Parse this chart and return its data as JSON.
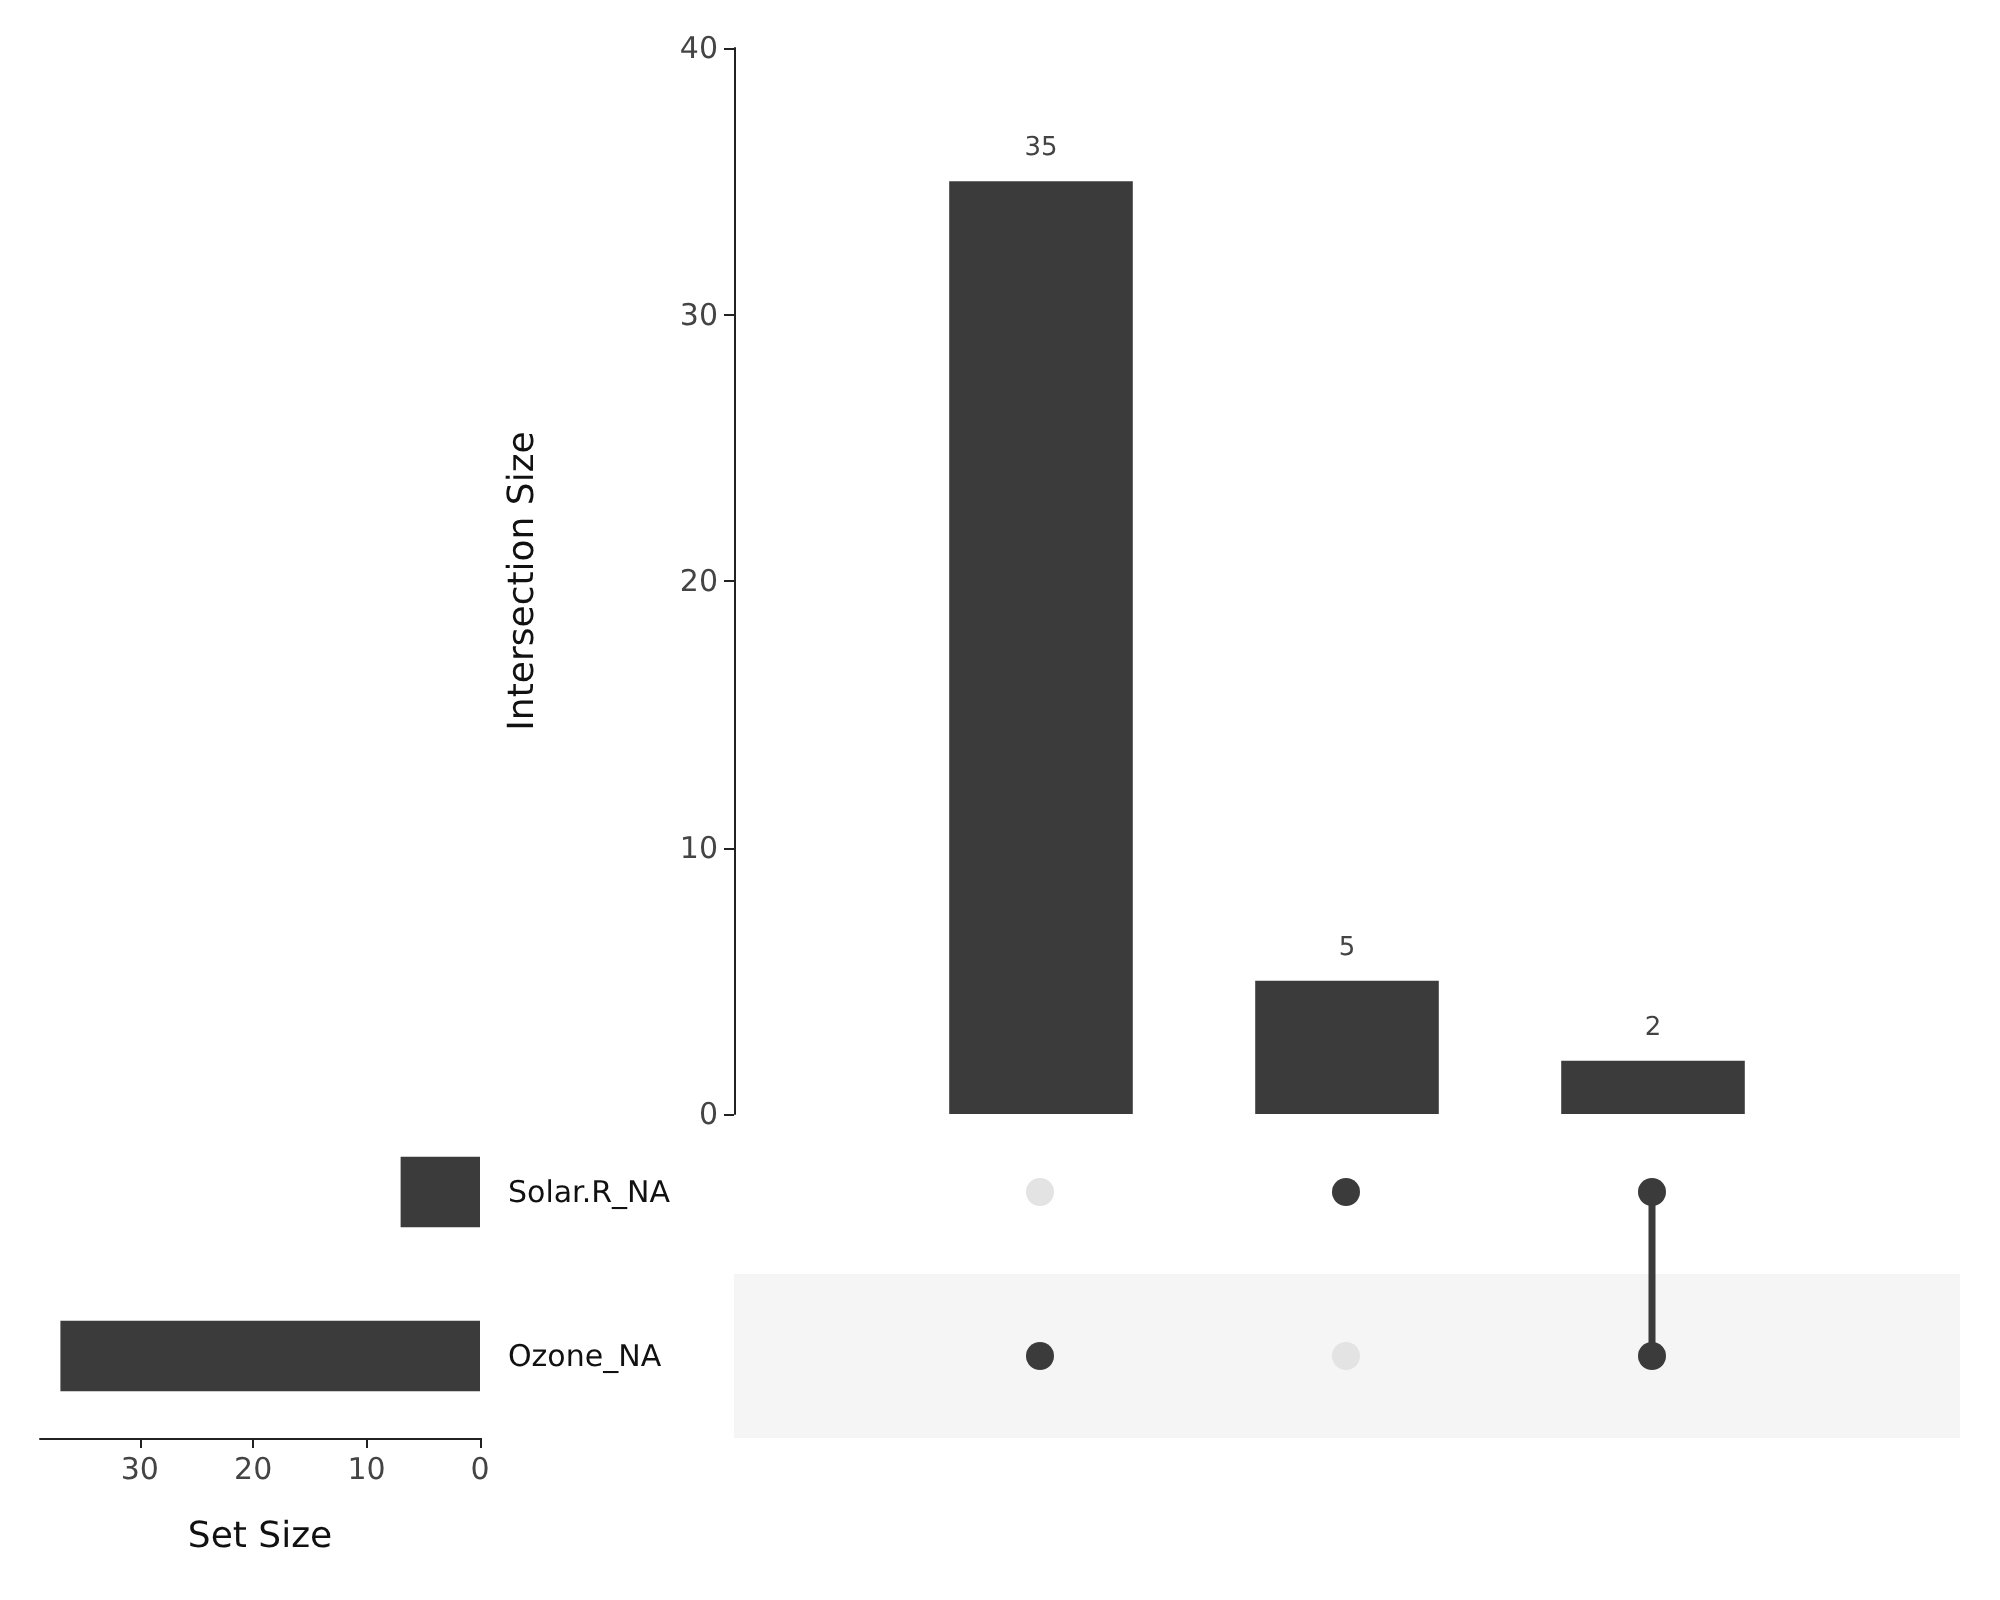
{
  "chart_data": [
    {
      "type": "bar",
      "categories": [
        null,
        null,
        null
      ],
      "values": [
        35,
        5,
        2
      ],
      "color": "#3b3b3b",
      "ylabel": "Intersection Size",
      "ylim": [
        0,
        40
      ],
      "yticks": [
        0,
        10,
        20,
        30,
        40
      ],
      "data_labels": true,
      "grid": false,
      "tick_labels": "y"
    },
    {
      "type": "bar",
      "orientation": "horizontal",
      "categories": [
        "Solar.R_NA",
        "Ozone_NA"
      ],
      "values": [
        7,
        37
      ],
      "color": "#3b3b3b",
      "xlabel": "Set Size",
      "xlim": [
        38.8,
        0
      ],
      "xticks": [
        30,
        20,
        10,
        0
      ],
      "grid": false
    }
  ]
}
